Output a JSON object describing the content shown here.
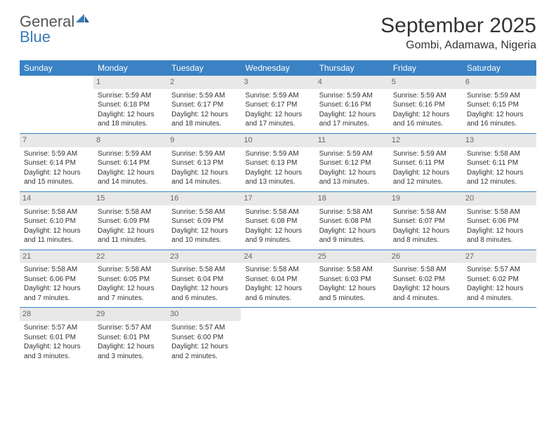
{
  "brand": {
    "name1": "General",
    "name2": "Blue"
  },
  "title": "September 2025",
  "location": "Gombi, Adamawa, Nigeria",
  "colors": {
    "header_bg": "#3a82c4",
    "header_text": "#ffffff",
    "daynum_bg": "#e8e8e8",
    "daynum_text": "#666666",
    "week_border": "#3a82c4",
    "brand_blue": "#3a7ab8",
    "text": "#333333",
    "background": "#ffffff"
  },
  "typography": {
    "title_fontsize": 30,
    "location_fontsize": 16,
    "dayhead_fontsize": 12,
    "daynum_fontsize": 11,
    "cell_fontsize": 10
  },
  "layout": {
    "columns": 7,
    "rows": 5,
    "first_day_column": 1
  },
  "day_names": [
    "Sunday",
    "Monday",
    "Tuesday",
    "Wednesday",
    "Thursday",
    "Friday",
    "Saturday"
  ],
  "days": [
    {
      "n": 1,
      "sr": "5:59 AM",
      "ss": "6:18 PM",
      "dl": "12 hours and 18 minutes."
    },
    {
      "n": 2,
      "sr": "5:59 AM",
      "ss": "6:17 PM",
      "dl": "12 hours and 18 minutes."
    },
    {
      "n": 3,
      "sr": "5:59 AM",
      "ss": "6:17 PM",
      "dl": "12 hours and 17 minutes."
    },
    {
      "n": 4,
      "sr": "5:59 AM",
      "ss": "6:16 PM",
      "dl": "12 hours and 17 minutes."
    },
    {
      "n": 5,
      "sr": "5:59 AM",
      "ss": "6:16 PM",
      "dl": "12 hours and 16 minutes."
    },
    {
      "n": 6,
      "sr": "5:59 AM",
      "ss": "6:15 PM",
      "dl": "12 hours and 16 minutes."
    },
    {
      "n": 7,
      "sr": "5:59 AM",
      "ss": "6:14 PM",
      "dl": "12 hours and 15 minutes."
    },
    {
      "n": 8,
      "sr": "5:59 AM",
      "ss": "6:14 PM",
      "dl": "12 hours and 14 minutes."
    },
    {
      "n": 9,
      "sr": "5:59 AM",
      "ss": "6:13 PM",
      "dl": "12 hours and 14 minutes."
    },
    {
      "n": 10,
      "sr": "5:59 AM",
      "ss": "6:13 PM",
      "dl": "12 hours and 13 minutes."
    },
    {
      "n": 11,
      "sr": "5:59 AM",
      "ss": "6:12 PM",
      "dl": "12 hours and 13 minutes."
    },
    {
      "n": 12,
      "sr": "5:59 AM",
      "ss": "6:11 PM",
      "dl": "12 hours and 12 minutes."
    },
    {
      "n": 13,
      "sr": "5:58 AM",
      "ss": "6:11 PM",
      "dl": "12 hours and 12 minutes."
    },
    {
      "n": 14,
      "sr": "5:58 AM",
      "ss": "6:10 PM",
      "dl": "12 hours and 11 minutes."
    },
    {
      "n": 15,
      "sr": "5:58 AM",
      "ss": "6:09 PM",
      "dl": "12 hours and 11 minutes."
    },
    {
      "n": 16,
      "sr": "5:58 AM",
      "ss": "6:09 PM",
      "dl": "12 hours and 10 minutes."
    },
    {
      "n": 17,
      "sr": "5:58 AM",
      "ss": "6:08 PM",
      "dl": "12 hours and 9 minutes."
    },
    {
      "n": 18,
      "sr": "5:58 AM",
      "ss": "6:08 PM",
      "dl": "12 hours and 9 minutes."
    },
    {
      "n": 19,
      "sr": "5:58 AM",
      "ss": "6:07 PM",
      "dl": "12 hours and 8 minutes."
    },
    {
      "n": 20,
      "sr": "5:58 AM",
      "ss": "6:06 PM",
      "dl": "12 hours and 8 minutes."
    },
    {
      "n": 21,
      "sr": "5:58 AM",
      "ss": "6:06 PM",
      "dl": "12 hours and 7 minutes."
    },
    {
      "n": 22,
      "sr": "5:58 AM",
      "ss": "6:05 PM",
      "dl": "12 hours and 7 minutes."
    },
    {
      "n": 23,
      "sr": "5:58 AM",
      "ss": "6:04 PM",
      "dl": "12 hours and 6 minutes."
    },
    {
      "n": 24,
      "sr": "5:58 AM",
      "ss": "6:04 PM",
      "dl": "12 hours and 6 minutes."
    },
    {
      "n": 25,
      "sr": "5:58 AM",
      "ss": "6:03 PM",
      "dl": "12 hours and 5 minutes."
    },
    {
      "n": 26,
      "sr": "5:58 AM",
      "ss": "6:02 PM",
      "dl": "12 hours and 4 minutes."
    },
    {
      "n": 27,
      "sr": "5:57 AM",
      "ss": "6:02 PM",
      "dl": "12 hours and 4 minutes."
    },
    {
      "n": 28,
      "sr": "5:57 AM",
      "ss": "6:01 PM",
      "dl": "12 hours and 3 minutes."
    },
    {
      "n": 29,
      "sr": "5:57 AM",
      "ss": "6:01 PM",
      "dl": "12 hours and 3 minutes."
    },
    {
      "n": 30,
      "sr": "5:57 AM",
      "ss": "6:00 PM",
      "dl": "12 hours and 2 minutes."
    }
  ],
  "labels": {
    "sunrise": "Sunrise:",
    "sunset": "Sunset:",
    "daylight": "Daylight:"
  }
}
